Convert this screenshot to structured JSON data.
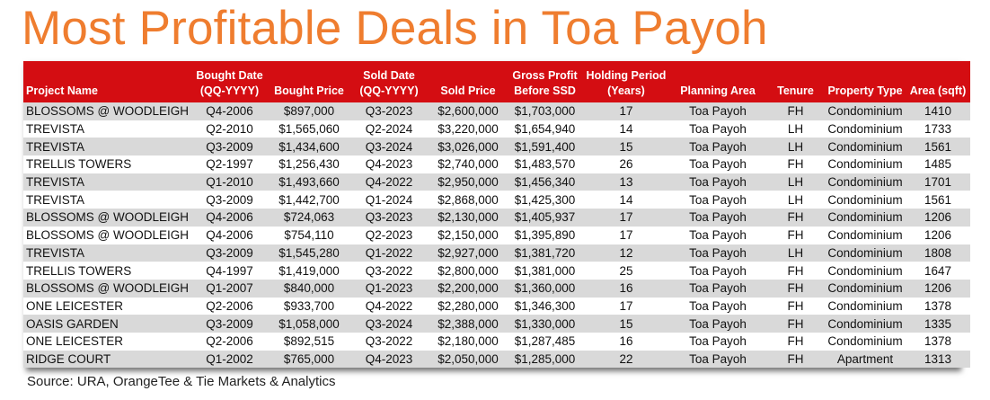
{
  "title": "Most Profitable Deals in Toa Payoh",
  "colors": {
    "title": "#ef7d2f",
    "header_bg": "#d40d12",
    "row_shaded": "#d9d9d9"
  },
  "table": {
    "headers": [
      [
        "",
        "Project Name"
      ],
      [
        "Bought Date",
        "(QQ-YYYY)"
      ],
      [
        "",
        "Bought Price"
      ],
      [
        "Sold Date",
        "(QQ-YYYY)"
      ],
      [
        "",
        "Sold Price"
      ],
      [
        "Gross Profit",
        "Before SSD"
      ],
      [
        "Holding Period",
        "(Years)"
      ],
      [
        "",
        "Planning Area"
      ],
      [
        "",
        "Tenure"
      ],
      [
        "",
        "Property Type"
      ],
      [
        "",
        "Area (sqft)"
      ]
    ],
    "rows": [
      [
        "BLOSSOMS @ WOODLEIGH",
        "Q4-2006",
        "$897,000",
        "Q3-2023",
        "$2,600,000",
        "$1,703,000",
        "17",
        "Toa Payoh",
        "FH",
        "Condominium",
        "1410"
      ],
      [
        "TREVISTA",
        "Q2-2010",
        "$1,565,060",
        "Q2-2024",
        "$3,220,000",
        "$1,654,940",
        "14",
        "Toa Payoh",
        "LH",
        "Condominium",
        "1733"
      ],
      [
        "TREVISTA",
        "Q3-2009",
        "$1,434,600",
        "Q3-2024",
        "$3,026,000",
        "$1,591,400",
        "15",
        "Toa Payoh",
        "LH",
        "Condominium",
        "1561"
      ],
      [
        "TRELLIS TOWERS",
        "Q2-1997",
        "$1,256,430",
        "Q4-2023",
        "$2,740,000",
        "$1,483,570",
        "26",
        "Toa Payoh",
        "FH",
        "Condominium",
        "1485"
      ],
      [
        "TREVISTA",
        "Q1-2010",
        "$1,493,660",
        "Q4-2022",
        "$2,950,000",
        "$1,456,340",
        "13",
        "Toa Payoh",
        "LH",
        "Condominium",
        "1701"
      ],
      [
        "TREVISTA",
        "Q3-2009",
        "$1,442,700",
        "Q1-2024",
        "$2,868,000",
        "$1,425,300",
        "14",
        "Toa Payoh",
        "LH",
        "Condominium",
        "1561"
      ],
      [
        "BLOSSOMS @ WOODLEIGH",
        "Q4-2006",
        "$724,063",
        "Q3-2023",
        "$2,130,000",
        "$1,405,937",
        "17",
        "Toa Payoh",
        "FH",
        "Condominium",
        "1206"
      ],
      [
        "BLOSSOMS @ WOODLEIGH",
        "Q4-2006",
        "$754,110",
        "Q2-2023",
        "$2,150,000",
        "$1,395,890",
        "17",
        "Toa Payoh",
        "FH",
        "Condominium",
        "1206"
      ],
      [
        "TREVISTA",
        "Q3-2009",
        "$1,545,280",
        "Q1-2022",
        "$2,927,000",
        "$1,381,720",
        "12",
        "Toa Payoh",
        "LH",
        "Condominium",
        "1808"
      ],
      [
        "TRELLIS TOWERS",
        "Q4-1997",
        "$1,419,000",
        "Q3-2022",
        "$2,800,000",
        "$1,381,000",
        "25",
        "Toa Payoh",
        "FH",
        "Condominium",
        "1647"
      ],
      [
        "BLOSSOMS @ WOODLEIGH",
        "Q1-2007",
        "$840,000",
        "Q1-2023",
        "$2,200,000",
        "$1,360,000",
        "16",
        "Toa Payoh",
        "FH",
        "Condominium",
        "1206"
      ],
      [
        "ONE LEICESTER",
        "Q2-2006",
        "$933,700",
        "Q4-2022",
        "$2,280,000",
        "$1,346,300",
        "17",
        "Toa Payoh",
        "FH",
        "Condominium",
        "1378"
      ],
      [
        "OASIS GARDEN",
        "Q3-2009",
        "$1,058,000",
        "Q3-2024",
        "$2,388,000",
        "$1,330,000",
        "15",
        "Toa Payoh",
        "FH",
        "Condominium",
        "1335"
      ],
      [
        "ONE LEICESTER",
        "Q2-2006",
        "$892,515",
        "Q3-2022",
        "$2,180,000",
        "$1,287,485",
        "16",
        "Toa Payoh",
        "FH",
        "Condominium",
        "1378"
      ],
      [
        "RIDGE COURT",
        "Q1-2002",
        "$765,000",
        "Q4-2023",
        "$2,050,000",
        "$1,285,000",
        "22",
        "Toa Payoh",
        "FH",
        "Apartment",
        "1313"
      ]
    ]
  },
  "source": "Source: URA, OrangeTee & Tie Markets & Analytics"
}
